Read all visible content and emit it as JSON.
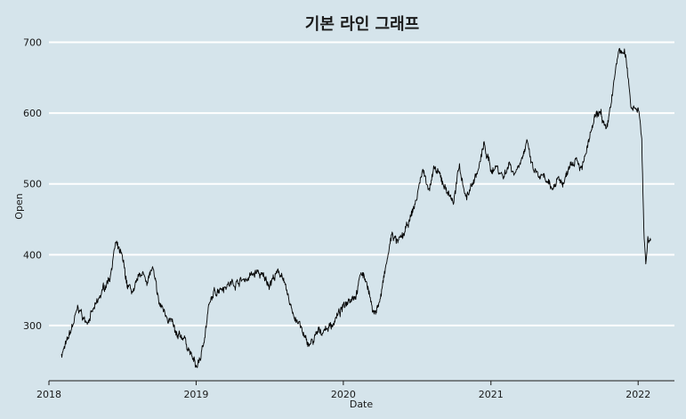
{
  "chart_data": {
    "type": "line",
    "title": "기본 라인 그래프",
    "xlabel": "Date",
    "ylabel": "Open",
    "xlim": [
      "2018-01-01",
      "2022-04-01"
    ],
    "ylim": [
      222,
      712
    ],
    "x_ticks": [
      "2018-01-01",
      "2019-01-01",
      "2020-01-01",
      "2021-01-01",
      "2022-01-01"
    ],
    "x_tick_labels": [
      "2018",
      "2019",
      "2020",
      "2021",
      "2022"
    ],
    "y_ticks": [
      300,
      400,
      500,
      600,
      700
    ],
    "y_tick_labels": [
      "300",
      "400",
      "500",
      "600",
      "700"
    ],
    "grid": "horizontal",
    "colors": {
      "background": "#d5e4eb",
      "grid": "#ffffff",
      "line": "#000000"
    },
    "series": [
      {
        "x": [
          "2018-02-01",
          "2018-02-15",
          "2018-03-01",
          "2018-03-15",
          "2018-04-01",
          "2018-04-15",
          "2018-05-01",
          "2018-05-15",
          "2018-06-01",
          "2018-06-15",
          "2018-07-01",
          "2018-07-15",
          "2018-08-01",
          "2018-08-15",
          "2018-09-01",
          "2018-09-15",
          "2018-10-01",
          "2018-10-15",
          "2018-11-01",
          "2018-11-15",
          "2018-12-01",
          "2018-12-15",
          "2019-01-01",
          "2019-01-15",
          "2019-02-01",
          "2019-02-15",
          "2019-03-01",
          "2019-04-01",
          "2019-05-01",
          "2019-06-01",
          "2019-07-01",
          "2019-07-15",
          "2019-08-01",
          "2019-08-15",
          "2019-09-01",
          "2019-09-15",
          "2019-10-01",
          "2019-10-15",
          "2019-11-01",
          "2019-12-01",
          "2020-01-01",
          "2020-01-15",
          "2020-02-01",
          "2020-02-15",
          "2020-03-01",
          "2020-03-15",
          "2020-04-01",
          "2020-04-15",
          "2020-05-01",
          "2020-05-15",
          "2020-06-01",
          "2020-06-15",
          "2020-07-01",
          "2020-07-15",
          "2020-08-01",
          "2020-08-15",
          "2020-09-01",
          "2020-09-15",
          "2020-10-01",
          "2020-10-15",
          "2020-11-01",
          "2020-11-15",
          "2020-12-01",
          "2020-12-15",
          "2021-01-01",
          "2021-01-15",
          "2021-02-01",
          "2021-02-15",
          "2021-03-01",
          "2021-03-15",
          "2021-04-01",
          "2021-04-15",
          "2021-05-01",
          "2021-05-15",
          "2021-06-01",
          "2021-06-15",
          "2021-07-01",
          "2021-07-15",
          "2021-08-01",
          "2021-08-15",
          "2021-09-01",
          "2021-09-15",
          "2021-10-01",
          "2021-10-15",
          "2021-11-01",
          "2021-11-15",
          "2021-12-01",
          "2021-12-15",
          "2022-01-01",
          "2022-01-05",
          "2022-01-10",
          "2022-01-15",
          "2022-01-20",
          "2022-01-25",
          "2022-02-01"
        ],
        "y": [
          260,
          275,
          300,
          325,
          305,
          315,
          330,
          350,
          370,
          415,
          395,
          355,
          345,
          375,
          365,
          380,
          330,
          320,
          305,
          280,
          285,
          265,
          240,
          260,
          325,
          345,
          355,
          360,
          365,
          375,
          360,
          370,
          375,
          340,
          315,
          300,
          275,
          275,
          290,
          300,
          325,
          340,
          345,
          375,
          360,
          315,
          335,
          380,
          430,
          415,
          430,
          450,
          480,
          520,
          495,
          520,
          505,
          490,
          475,
          525,
          480,
          500,
          520,
          555,
          520,
          525,
          510,
          530,
          515,
          535,
          555,
          520,
          510,
          505,
          490,
          510,
          500,
          530,
          540,
          520,
          560,
          590,
          600,
          570,
          640,
          690,
          680,
          610,
          610,
          590,
          560,
          440,
          385,
          420,
          420
        ],
        "noise": 4.5,
        "seed": 7
      }
    ]
  }
}
